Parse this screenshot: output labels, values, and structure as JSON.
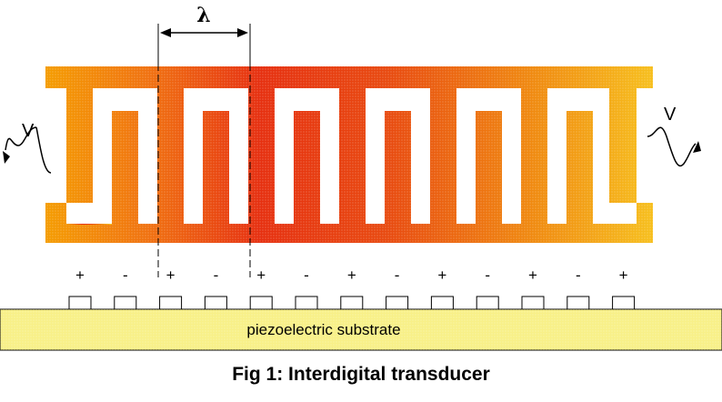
{
  "figure": {
    "wavelength_label": "λ",
    "source_label_left": "V",
    "source_label_right": "V",
    "substrate_label": "piezoelectric substrate",
    "caption": "Fig 1: Interdigital transducer",
    "polarity_signs": [
      "+",
      "-",
      "+",
      "-",
      "+",
      "-",
      "+",
      "-",
      "+",
      "-",
      "+",
      "-",
      "+"
    ],
    "colors": {
      "electrode_outer": "#f5b800",
      "electrode_mid": "#f07a10",
      "electrode_center": "#e83a10",
      "substrate": "#f8f088",
      "outline": "#000000"
    }
  }
}
